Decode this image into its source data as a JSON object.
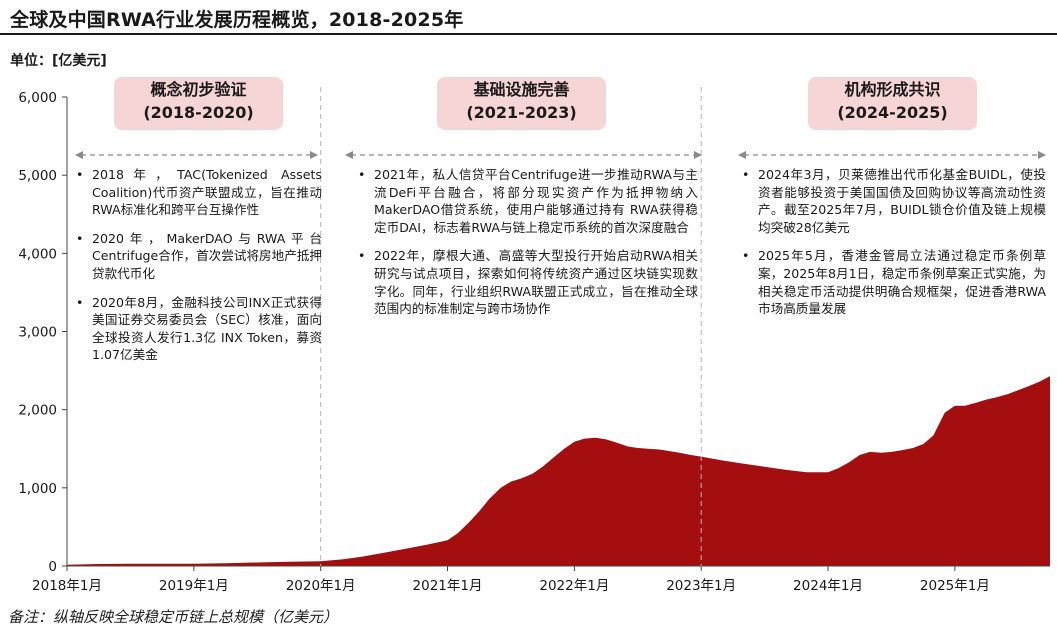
{
  "header": {
    "title": "全球及中国RWA行业发展历程概览，2018-2025年",
    "unit": "单位：[亿美元]"
  },
  "footnote": "备注：纵轴反映全球稳定币链上总规模（亿美元）",
  "phases": [
    {
      "name": "概念初步验证",
      "period": "(2018-2020)",
      "items": [
        "2018年，TAC(Tokenized Assets Coalition)代币资产联盟成立，旨在推动RWA标准化和跨平台互操作性",
        "2020年，MakerDAO与RWA平台Centrifuge合作，首次尝试将房地产抵押贷款代币化",
        "2020年8月，金融科技公司INX正式获得美国证券交易委员会（SEC）核准，面向全球投资人发行1.3亿 INX Token，募资1.07亿美金"
      ]
    },
    {
      "name": "基础设施完善",
      "period": "(2021-2023)",
      "items": [
        "2021年，私人信贷平台Centrifuge进一步推动RWA与主流DeFi平台融合，将部分现实资产作为抵押物纳入MakerDAO借贷系统，使用户能够通过持有 RWA获得稳定币DAI，标志着RWA与链上稳定币系统的首次深度融合",
        "2022年，摩根大通、高盛等大型投行开始启动RWA相关研究与试点项目，探索如何将传统资产通过区块链实现数字化。同年，行业组织RWA联盟正式成立，旨在推动全球范围内的标准制定与跨市场协作"
      ]
    },
    {
      "name": "机构形成共识",
      "period": "(2024-2025)",
      "items": [
        "2024年3月，贝莱德推出代币化基金BUIDL，使投资者能够投资于美国国债及回购协议等高流动性资产。截至2025年7月，BUIDL锁仓价值及链上规模均突破28亿美元",
        "2025年5月，香港金管局立法通过稳定币条例草案，2025年8月1日，稳定币条例草案正式实施，为相关稳定币活动提供明确合规框架，促进香港RWA市场高质量发展"
      ]
    }
  ],
  "chart_data": {
    "type": "area",
    "title": "全球及中国RWA行业发展历程概览，2018-2025年",
    "ylabel": "亿美元",
    "xlabel": "",
    "ylim": [
      0,
      6000
    ],
    "xlim": [
      2018.0,
      2025.75
    ],
    "yticks": [
      0,
      1000,
      2000,
      3000,
      4000,
      5000,
      6000
    ],
    "ytick_labels": [
      "0",
      "1,000",
      "2,000",
      "3,000",
      "4,000",
      "5,000",
      "6,000"
    ],
    "xticks": [
      2018,
      2019,
      2020,
      2021,
      2022,
      2023,
      2024,
      2025
    ],
    "xtick_labels": [
      "2018年1月",
      "2019年1月",
      "2020年1月",
      "2021年1月",
      "2022年1月",
      "2023年1月",
      "2024年1月",
      "2025年1月"
    ],
    "phase_dividers_x": [
      2020.0,
      2023.0
    ],
    "series": [
      {
        "name": "全球稳定币链上总规模",
        "color": "#a50e0e",
        "x": [
          2018.0,
          2018.25,
          2018.5,
          2018.75,
          2019.0,
          2019.25,
          2019.5,
          2019.75,
          2020.0,
          2020.17,
          2020.33,
          2020.5,
          2020.67,
          2020.83,
          2021.0,
          2021.08,
          2021.17,
          2021.25,
          2021.33,
          2021.42,
          2021.5,
          2021.58,
          2021.67,
          2021.75,
          2021.83,
          2021.92,
          2022.0,
          2022.08,
          2022.17,
          2022.25,
          2022.33,
          2022.42,
          2022.5,
          2022.58,
          2022.67,
          2022.75,
          2022.83,
          2022.92,
          2023.0,
          2023.17,
          2023.33,
          2023.5,
          2023.67,
          2023.83,
          2024.0,
          2024.08,
          2024.17,
          2024.25,
          2024.33,
          2024.42,
          2024.5,
          2024.58,
          2024.67,
          2024.75,
          2024.83,
          2024.92,
          2025.0,
          2025.08,
          2025.17,
          2025.25,
          2025.33,
          2025.42,
          2025.5,
          2025.58,
          2025.67,
          2025.75
        ],
        "values": [
          15,
          25,
          30,
          30,
          30,
          35,
          45,
          55,
          60,
          85,
          120,
          170,
          220,
          270,
          330,
          420,
          560,
          700,
          860,
          1000,
          1080,
          1120,
          1180,
          1270,
          1380,
          1500,
          1590,
          1630,
          1640,
          1620,
          1580,
          1530,
          1510,
          1500,
          1490,
          1470,
          1450,
          1420,
          1400,
          1350,
          1310,
          1270,
          1230,
          1200,
          1200,
          1250,
          1330,
          1420,
          1460,
          1450,
          1460,
          1480,
          1510,
          1560,
          1670,
          1960,
          2050,
          2050,
          2090,
          2130,
          2160,
          2200,
          2250,
          2300,
          2360,
          2430
        ]
      }
    ]
  }
}
